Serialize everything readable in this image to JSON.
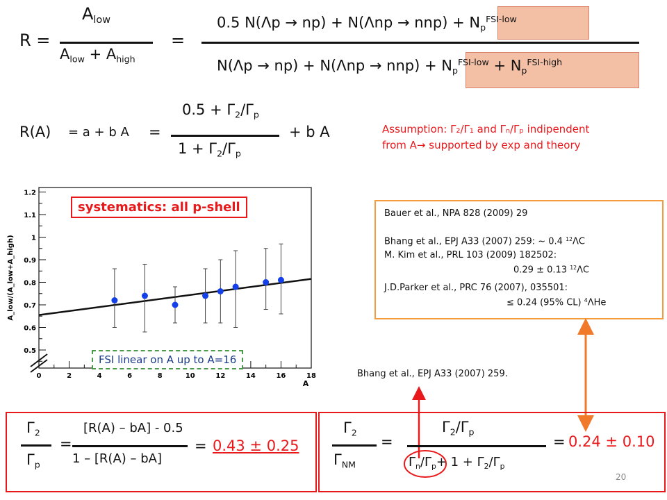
{
  "ratio_eq": {
    "lhs": "R =",
    "num_A": "A",
    "num_sub": "low",
    "den_A1": "A",
    "den_sub1": "low",
    "den_plus": " + A",
    "den_sub2": "high",
    "eq": "=",
    "rhs_num": "0.5 N(Λp → np) + N(Λnp → nnp) + ",
    "rhs_num_N": "N",
    "rhs_num_sub": "p",
    "rhs_num_sup": "FSI-low",
    "rhs_den": "N(Λp → np) + N(Λnp → nnp) + ",
    "rhs_den_N1": "N",
    "rhs_den_sub1": "p",
    "rhs_den_sup1": "FSI-low",
    "rhs_den_plus": " + N",
    "rhs_den_sub2": "p",
    "rhs_den_sup2": "FSI-high"
  },
  "linear_eq": {
    "lhs": "R(A)",
    "eq1": "= a + b A",
    "eq2": "=",
    "num": "0.5 + Γ",
    "num_sub2": "2",
    "num_slash": "/Γ",
    "num_subp": "p",
    "den": "1 + Γ",
    "den_sub2": "2",
    "den_slash": "/Γ",
    "den_subp": "p",
    "tail": "+ b A"
  },
  "assumption": {
    "line1": "Assumption:  Γ₂/Γ₁ and Γₙ/Γₚ indipendent",
    "line2": "from A→ supported by exp and theory"
  },
  "plot": {
    "ylabel": "A_low/(A_low+A_high)",
    "xlabel": "A",
    "yticks": [
      "0.5",
      "0.6",
      "0.7",
      "0.8",
      "0.9",
      "1",
      "1.1",
      "1.2"
    ],
    "xticks": [
      "0",
      "2",
      "4",
      "6",
      "8",
      "10",
      "12",
      "14",
      "16",
      "18"
    ],
    "systematics_label": "systematics: all p-shell",
    "fsi_label": "FSI linear on A up to A=16"
  },
  "chart_data": {
    "type": "scatter",
    "x": [
      5,
      7,
      9,
      11,
      12,
      13,
      15,
      16
    ],
    "y": [
      0.72,
      0.74,
      0.7,
      0.74,
      0.76,
      0.78,
      0.8,
      0.81
    ],
    "err_low": [
      0.6,
      0.58,
      0.62,
      0.62,
      0.62,
      0.6,
      0.68,
      0.66
    ],
    "err_high": [
      0.86,
      0.88,
      0.78,
      0.86,
      0.9,
      0.94,
      0.95,
      0.97
    ],
    "fit_line": {
      "x": [
        0,
        18
      ],
      "y": [
        0.655,
        0.815
      ]
    },
    "xlim": [
      0,
      18
    ],
    "ylim": [
      0.42,
      1.22
    ],
    "xlabel": "A",
    "ylabel": "A_low/(A_low+A_high)",
    "grid": false,
    "colors": {
      "points": "#1340e8",
      "line": "#111111"
    }
  },
  "refs": {
    "r1": "Bauer et al., NPA 828 (2009) 29",
    "r2a": "Bhang et al., EPJ A33 (2007) 259: ~ 0.4 ",
    "r2b_sup": "12",
    "r2b": "ΛC",
    "r3": "M. Kim et al., PRL 103 (2009) 182502:",
    "r4a": "0.29 ± 0.13 ",
    "r4_sup": "12",
    "r4b": "ΛC",
    "r5": "J.D.Parker et al., PRC 76 (2007), 035501:",
    "r6a": "≤ 0.24 (95% CL) ",
    "r6_sup": "4",
    "r6b": "ΛHe"
  },
  "bhang_note": "Bhang et al., EPJ A33 (2007) 259.",
  "result_left": {
    "g2": "Γ",
    "g2_sub": "2",
    "gp": "Γ",
    "gp_sub": "p",
    "eq": "=",
    "num": "[R(A) – bA] - 0.5",
    "den": "1 – [R(A) – bA]",
    "eq2": "=",
    "value": "0.43 ± 0.25"
  },
  "result_right": {
    "g2": "Γ",
    "g2_sub": "2",
    "gnm": "Γ",
    "gnm_sub": "NM",
    "eq": "=",
    "num": "Γ",
    "num_sub": "2",
    "num_slash": "/Γ",
    "num_subp": "p",
    "den_a": "Γ",
    "den_sub_n": "n",
    "den_slash": "/Γ",
    "den_sub_p": "p",
    "den_plus": "+ 1 + Γ",
    "den_sub_2": "2",
    "den_slash2": "/Γ",
    "den_sub_p2": "p",
    "eq2": "=",
    "value": "0.24 ± 0.10"
  },
  "page_number": "20",
  "colors": {
    "accent_red": "#e8191b",
    "highlight": "#f3bfa5",
    "refs_border": "#f39b3d",
    "arrow_orange": "#f07a2a",
    "fsi_green": "#4a9a4a"
  }
}
